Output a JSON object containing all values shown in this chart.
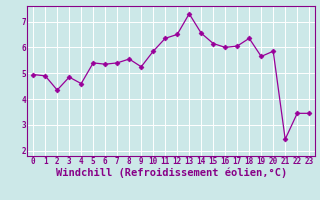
{
  "x": [
    0,
    1,
    2,
    3,
    4,
    5,
    6,
    7,
    8,
    9,
    10,
    11,
    12,
    13,
    14,
    15,
    16,
    17,
    18,
    19,
    20,
    21,
    22,
    23
  ],
  "y": [
    4.95,
    4.9,
    4.35,
    4.85,
    4.6,
    5.4,
    5.35,
    5.4,
    5.55,
    5.25,
    5.85,
    6.35,
    6.5,
    7.3,
    6.55,
    6.15,
    6.0,
    6.05,
    6.35,
    5.65,
    5.85,
    2.45,
    3.45,
    3.45
  ],
  "line_color": "#990099",
  "marker": "D",
  "marker_size": 2.5,
  "xlim": [
    -0.5,
    23.5
  ],
  "ylim": [
    1.8,
    7.6
  ],
  "yticks": [
    2,
    3,
    4,
    5,
    6,
    7
  ],
  "xticks": [
    0,
    1,
    2,
    3,
    4,
    5,
    6,
    7,
    8,
    9,
    10,
    11,
    12,
    13,
    14,
    15,
    16,
    17,
    18,
    19,
    20,
    21,
    22,
    23
  ],
  "xlabel": "Windchill (Refroidissement éolien,°C)",
  "bg_color": "#cce8e8",
  "grid_color": "#ffffff",
  "tick_color": "#880088",
  "label_color": "#880088",
  "tick_fontsize": 5.5,
  "xlabel_fontsize": 7.5,
  "linewidth": 0.9
}
